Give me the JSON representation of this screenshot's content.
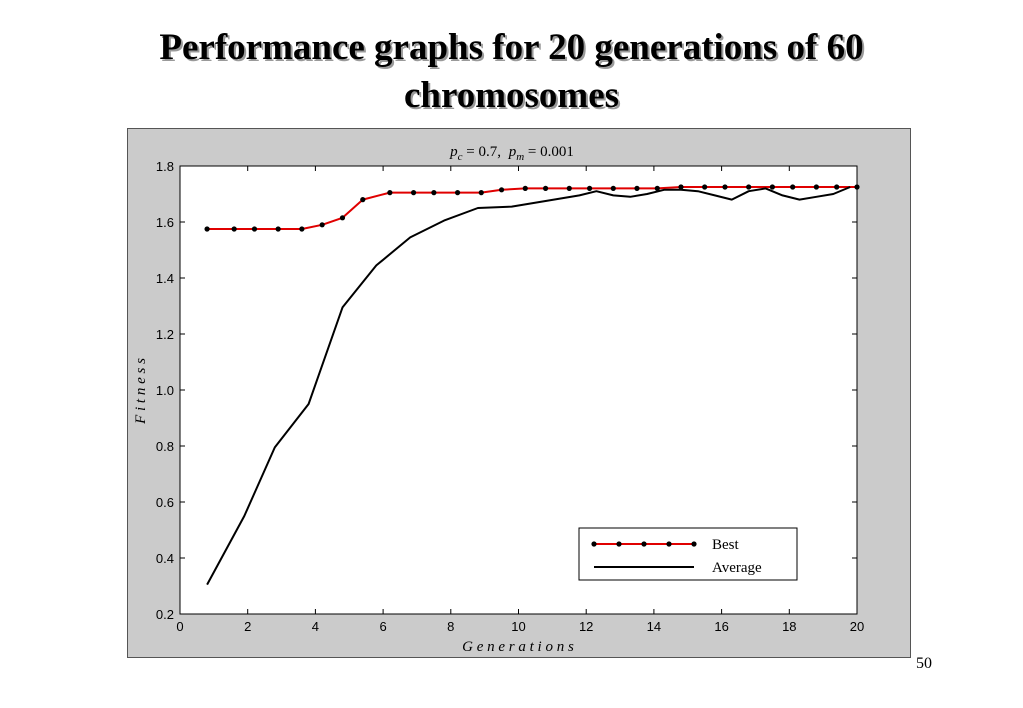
{
  "slide": {
    "title_line1": "Performance graphs for 20 generations of 60",
    "title_line2": "chromosomes",
    "page_number": "50"
  },
  "chart_data": {
    "type": "line",
    "title": "p_c = 0.7,  p_m = 0.001",
    "title_parts": {
      "p1": "p",
      "s1": "c",
      "v1": " = 0.7, ",
      "p2": "p",
      "s2": "m",
      "v2": " = 0.001"
    },
    "xlabel": "G e n e r a t i o n s",
    "ylabel": "F i t n e s s",
    "xlim": [
      0,
      20
    ],
    "ylim": [
      0.2,
      1.8
    ],
    "xticks": [
      0,
      2,
      4,
      6,
      8,
      10,
      12,
      14,
      16,
      18,
      20
    ],
    "yticks": [
      "0.2",
      "0.4",
      "0.6",
      "0.8",
      "1.0",
      "1.2",
      "1.4",
      "1.6",
      "1.8"
    ],
    "legend_position": "bottom-right",
    "grid": false,
    "series": [
      {
        "name": "Best",
        "color": "#e00000",
        "marker": "dot",
        "x": [
          0.8,
          1.6,
          2.2,
          2.9,
          3.6,
          4.2,
          4.8,
          5.4,
          6.2,
          6.9,
          7.5,
          8.2,
          8.9,
          9.5,
          10.2,
          10.8,
          11.5,
          12.1,
          12.8,
          13.5,
          14.1,
          14.8,
          15.5,
          16.1,
          16.8,
          17.5,
          18.1,
          18.8,
          19.4,
          20.0
        ],
        "y": [
          1.575,
          1.575,
          1.575,
          1.575,
          1.575,
          1.59,
          1.615,
          1.68,
          1.705,
          1.705,
          1.705,
          1.705,
          1.705,
          1.715,
          1.72,
          1.72,
          1.72,
          1.72,
          1.72,
          1.72,
          1.72,
          1.725,
          1.725,
          1.725,
          1.725,
          1.725,
          1.725,
          1.725,
          1.725,
          1.725
        ]
      },
      {
        "name": "Average",
        "color": "#000000",
        "marker": "none",
        "x": [
          0.8,
          1.9,
          2.8,
          3.8,
          4.8,
          5.8,
          6.8,
          7.8,
          8.8,
          9.8,
          10.8,
          11.8,
          12.3,
          12.8,
          13.3,
          13.8,
          14.3,
          14.8,
          15.3,
          15.8,
          16.3,
          16.8,
          17.3,
          17.8,
          18.3,
          18.8,
          19.3,
          19.8
        ],
        "y": [
          0.305,
          0.55,
          0.795,
          0.95,
          1.295,
          1.445,
          1.545,
          1.605,
          1.65,
          1.655,
          1.675,
          1.695,
          1.71,
          1.695,
          1.69,
          1.7,
          1.715,
          1.715,
          1.71,
          1.695,
          1.68,
          1.71,
          1.72,
          1.695,
          1.68,
          1.69,
          1.7,
          1.725
        ]
      }
    ]
  }
}
